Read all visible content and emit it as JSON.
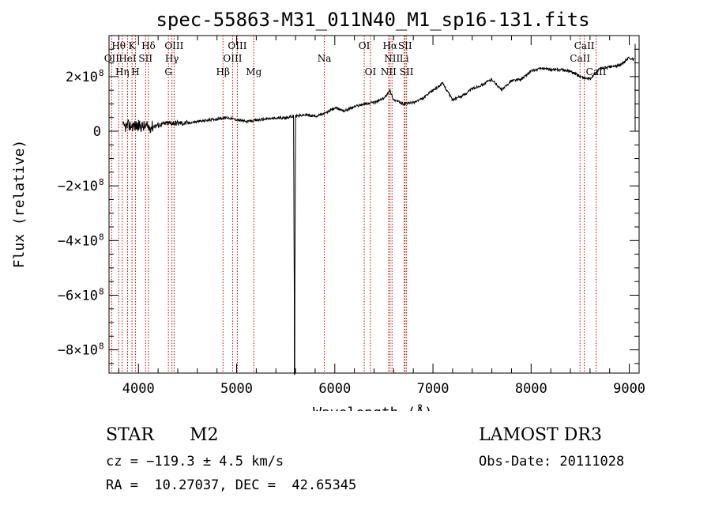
{
  "chart_data": {
    "type": "line",
    "title": "spec-55863-M31_011N40_M1_sp16-131.fits",
    "xlabel": "Wavelength (Å)",
    "ylabel": "Flux (relative)",
    "xlim": [
      3700,
      9100
    ],
    "ylim": [
      -885000000.0,
      350000000.0
    ],
    "x_ticks": [
      {
        "value": 4000,
        "label": "4000"
      },
      {
        "value": 5000,
        "label": "5000"
      },
      {
        "value": 6000,
        "label": "6000"
      },
      {
        "value": 7000,
        "label": "7000"
      },
      {
        "value": 8000,
        "label": "8000"
      },
      {
        "value": 9000,
        "label": "9000"
      }
    ],
    "y_ticks": [
      {
        "value": 200000000.0,
        "mantissa": "2",
        "label": "2×10",
        "exp": "8"
      },
      {
        "value": 0,
        "mantissa": "0",
        "label": "0",
        "exp": ""
      },
      {
        "value": -200000000.0,
        "mantissa": "-2",
        "label": "−2×10",
        "exp": "8"
      },
      {
        "value": -400000000.0,
        "mantissa": "-4",
        "label": "−4×10",
        "exp": "8"
      },
      {
        "value": -600000000.0,
        "mantissa": "-6",
        "label": "−6×10",
        "exp": "8"
      },
      {
        "value": -800000000.0,
        "mantissa": "-8",
        "label": "−8×10",
        "exp": "8"
      }
    ],
    "series": [
      {
        "name": "spectrum",
        "x": [
          3700,
          3800,
          3850,
          3900,
          4000,
          4100,
          4300,
          4500,
          4700,
          4900,
          5100,
          5300,
          5500,
          5580,
          5590,
          5600,
          5700,
          5800,
          5900,
          6000,
          6100,
          6200,
          6300,
          6400,
          6500,
          6560,
          6600,
          6700,
          6800,
          6900,
          7000,
          7100,
          7200,
          7300,
          7400,
          7500,
          7600,
          7700,
          7800,
          7900,
          8000,
          8100,
          8200,
          8300,
          8400,
          8500,
          8600,
          8700,
          8800,
          8900,
          9000,
          9050
        ],
        "y": [
          5000000.0,
          10000000.0,
          15000000.0,
          20000000.0,
          20000000.0,
          15000000.0,
          30000000.0,
          30000000.0,
          40000000.0,
          50000000.0,
          35000000.0,
          45000000.0,
          50000000.0,
          55000000.0,
          -890000000.0,
          55000000.0,
          60000000.0,
          55000000.0,
          65000000.0,
          85000000.0,
          75000000.0,
          90000000.0,
          100000000.0,
          105000000.0,
          120000000.0,
          150000000.0,
          115000000.0,
          100000000.0,
          105000000.0,
          120000000.0,
          150000000.0,
          175000000.0,
          115000000.0,
          130000000.0,
          155000000.0,
          170000000.0,
          190000000.0,
          150000000.0,
          185000000.0,
          190000000.0,
          220000000.0,
          230000000.0,
          225000000.0,
          225000000.0,
          220000000.0,
          200000000.0,
          190000000.0,
          230000000.0,
          235000000.0,
          240000000.0,
          270000000.0,
          260000000.0
        ]
      }
    ],
    "emission_lines": [
      {
        "label": "OII",
        "wavelength": 3727,
        "row": 2
      },
      {
        "label": "Hθ",
        "wavelength": 3798,
        "row": 1
      },
      {
        "label": "Hη",
        "wavelength": 3835,
        "row": 3
      },
      {
        "label": "HeI",
        "wavelength": 3889,
        "row": 2
      },
      {
        "label": "K",
        "wavelength": 3934,
        "row": 1
      },
      {
        "label": "H",
        "wavelength": 3969,
        "row": 3
      },
      {
        "label": "Hδ",
        "wavelength": 4102,
        "row": 1
      },
      {
        "label": "SII",
        "wavelength": 4072,
        "row": 2
      },
      {
        "label": "G",
        "wavelength": 4305,
        "row": 3
      },
      {
        "label": "Hγ",
        "wavelength": 4341,
        "row": 2
      },
      {
        "label": "OIII",
        "wavelength": 4363,
        "row": 1
      },
      {
        "label": "Hβ",
        "wavelength": 4861,
        "row": 3
      },
      {
        "label": "OIII",
        "wavelength": 4959,
        "row": 2
      },
      {
        "label": "OIII",
        "wavelength": 5007,
        "row": 1
      },
      {
        "label": "Mg",
        "wavelength": 5175,
        "row": 3
      },
      {
        "label": "Na",
        "wavelength": 5894,
        "row": 2
      },
      {
        "label": "OI",
        "wavelength": 6300,
        "row": 1
      },
      {
        "label": "OI",
        "wavelength": 6363,
        "row": 3
      },
      {
        "label": "NII",
        "wavelength": 6548,
        "row": 3
      },
      {
        "label": "Hα",
        "wavelength": 6563,
        "row": 1
      },
      {
        "label": "NII",
        "wavelength": 6583,
        "row": 2
      },
      {
        "label": "Li",
        "wavelength": 6707,
        "row": 2
      },
      {
        "label": "SII",
        "wavelength": 6716,
        "row": 1
      },
      {
        "label": "SII",
        "wavelength": 6731,
        "row": 3
      },
      {
        "label": "CaII",
        "wavelength": 8498,
        "row": 2
      },
      {
        "label": "CaII",
        "wavelength": 8542,
        "row": 1
      },
      {
        "label": "CaII",
        "wavelength": 8662,
        "row": 3
      }
    ],
    "colors": {
      "line": "#000000",
      "marker_lines": "#c00000"
    }
  },
  "footer": {
    "object_class": "STAR",
    "subclass": "M2",
    "cz": "cz = −119.3 ± 4.5 km/s",
    "coords": "RA =  10.27037, DEC =  42.65345",
    "survey": "LAMOST DR3",
    "obs_date": "Obs-Date: 20111028"
  }
}
